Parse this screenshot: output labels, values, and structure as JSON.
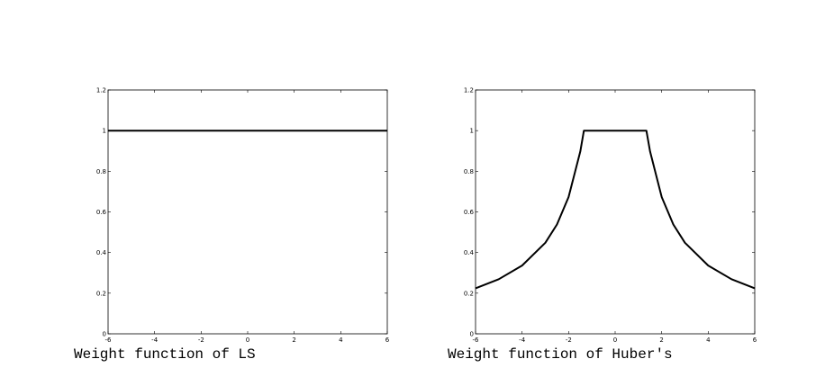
{
  "chart_data": [
    {
      "type": "line",
      "caption": "Weight function of LS",
      "xlim": [
        -6,
        6
      ],
      "ylim": [
        0,
        1.2
      ],
      "xticks": [
        -6,
        -4,
        -2,
        0,
        2,
        4,
        6
      ],
      "yticks": [
        0,
        0.2,
        0.4,
        0.6,
        0.8,
        1,
        1.2
      ],
      "grid": false,
      "series": [
        {
          "x": [
            -6,
            6
          ],
          "y": [
            1,
            1
          ]
        }
      ]
    },
    {
      "type": "line",
      "caption": "Weight function of Huber's",
      "xlim": [
        -6,
        6
      ],
      "ylim": [
        0,
        1.2
      ],
      "xticks": [
        -6,
        -4,
        -2,
        0,
        2,
        4,
        6
      ],
      "yticks": [
        0,
        0.2,
        0.4,
        0.6,
        0.8,
        1,
        1.2
      ],
      "grid": false,
      "series": [
        {
          "x": [
            -6,
            -5,
            -4,
            -3,
            -2.5,
            -2,
            -1.5,
            -1.345,
            1.345,
            1.5,
            2,
            2.5,
            3,
            4,
            5,
            6
          ],
          "y": [
            0.224,
            0.269,
            0.336,
            0.448,
            0.538,
            0.673,
            0.897,
            1,
            1,
            0.897,
            0.673,
            0.538,
            0.448,
            0.336,
            0.269,
            0.224
          ]
        }
      ]
    }
  ]
}
